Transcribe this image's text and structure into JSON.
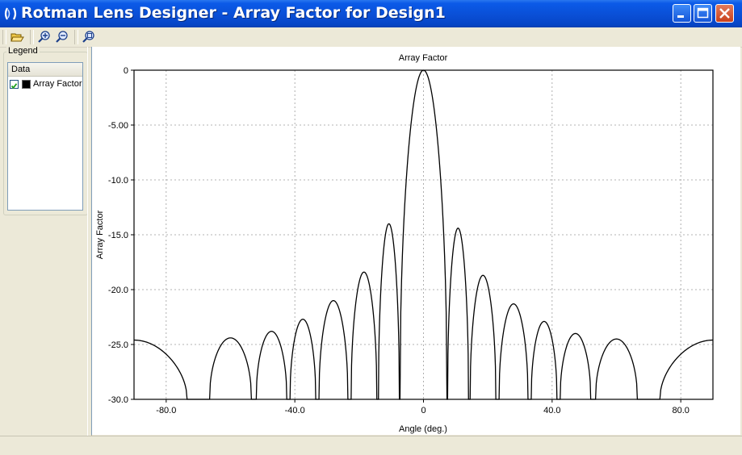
{
  "window": {
    "title": "Rotman Lens Designer - Array Factor for Design1",
    "controls": [
      "minimize-icon",
      "maximize-icon",
      "close-icon"
    ]
  },
  "toolbar": {
    "buttons": [
      {
        "name": "open-icon"
      },
      {
        "name": "zoom-in-icon"
      },
      {
        "name": "zoom-out-icon"
      },
      {
        "name": "zoom-fit-icon"
      }
    ]
  },
  "legend": {
    "caption": "Legend",
    "column_header": "Data",
    "items": [
      {
        "label": "Array Factor",
        "checked": true,
        "color": "#000000"
      }
    ]
  },
  "chart_data": {
    "type": "line",
    "title": "Array Factor",
    "xlabel": "Angle (deg.)",
    "ylabel": "Array Factor",
    "xlim": [
      -90,
      90
    ],
    "ylim": [
      -30,
      0
    ],
    "xticks": [
      -80,
      -40,
      0,
      40,
      80
    ],
    "xtick_labels": [
      "-80.0",
      "-40.0",
      "0",
      "40.0",
      "80.0"
    ],
    "yticks": [
      0,
      -5,
      -10,
      -15,
      -20,
      -25,
      -30
    ],
    "ytick_labels": [
      "0",
      "-5.00",
      "-10.0",
      "-15.0",
      "-20.0",
      "-25.0",
      "-30.0"
    ],
    "grid": true,
    "line_color": "#000000",
    "series": [
      {
        "lobes": [
          {
            "start": -90,
            "end": -73.5,
            "peak_x": -90,
            "peak": -24.6,
            "shape": "edge-left"
          },
          {
            "start": -66.5,
            "end": -53.5,
            "peak_x": -60,
            "peak": -24.4
          },
          {
            "start": -52,
            "end": -42.5,
            "peak_x": -47,
            "peak": -23.8
          },
          {
            "start": -41.5,
            "end": -33.5,
            "peak_x": -37.5,
            "peak": -22.7
          },
          {
            "start": -32.5,
            "end": -23.5,
            "peak_x": -27.5,
            "peak": -21.0
          },
          {
            "start": -22.5,
            "end": -14.5,
            "peak_x": -19,
            "peak": -18.4
          },
          {
            "start": -14,
            "end": -7.5,
            "peak_x": -11,
            "peak": -14.0
          },
          {
            "start": -7.3,
            "end": 7.3,
            "peak_x": 0,
            "peak": 0.0
          },
          {
            "start": 7.5,
            "end": 14,
            "peak_x": 11,
            "peak": -14.4
          },
          {
            "start": 14.5,
            "end": 22.5,
            "peak_x": 19,
            "peak": -18.7
          },
          {
            "start": 23.5,
            "end": 32.5,
            "peak_x": 27.5,
            "peak": -21.3
          },
          {
            "start": 33.5,
            "end": 41.5,
            "peak_x": 37.5,
            "peak": -22.9
          },
          {
            "start": 42.5,
            "end": 52,
            "peak_x": 47,
            "peak": -24.0
          },
          {
            "start": 53.5,
            "end": 66.5,
            "peak_x": 60,
            "peak": -24.5
          },
          {
            "start": 73.5,
            "end": 90,
            "peak_x": 90,
            "peak": -24.6,
            "shape": "edge-right"
          }
        ]
      }
    ]
  }
}
